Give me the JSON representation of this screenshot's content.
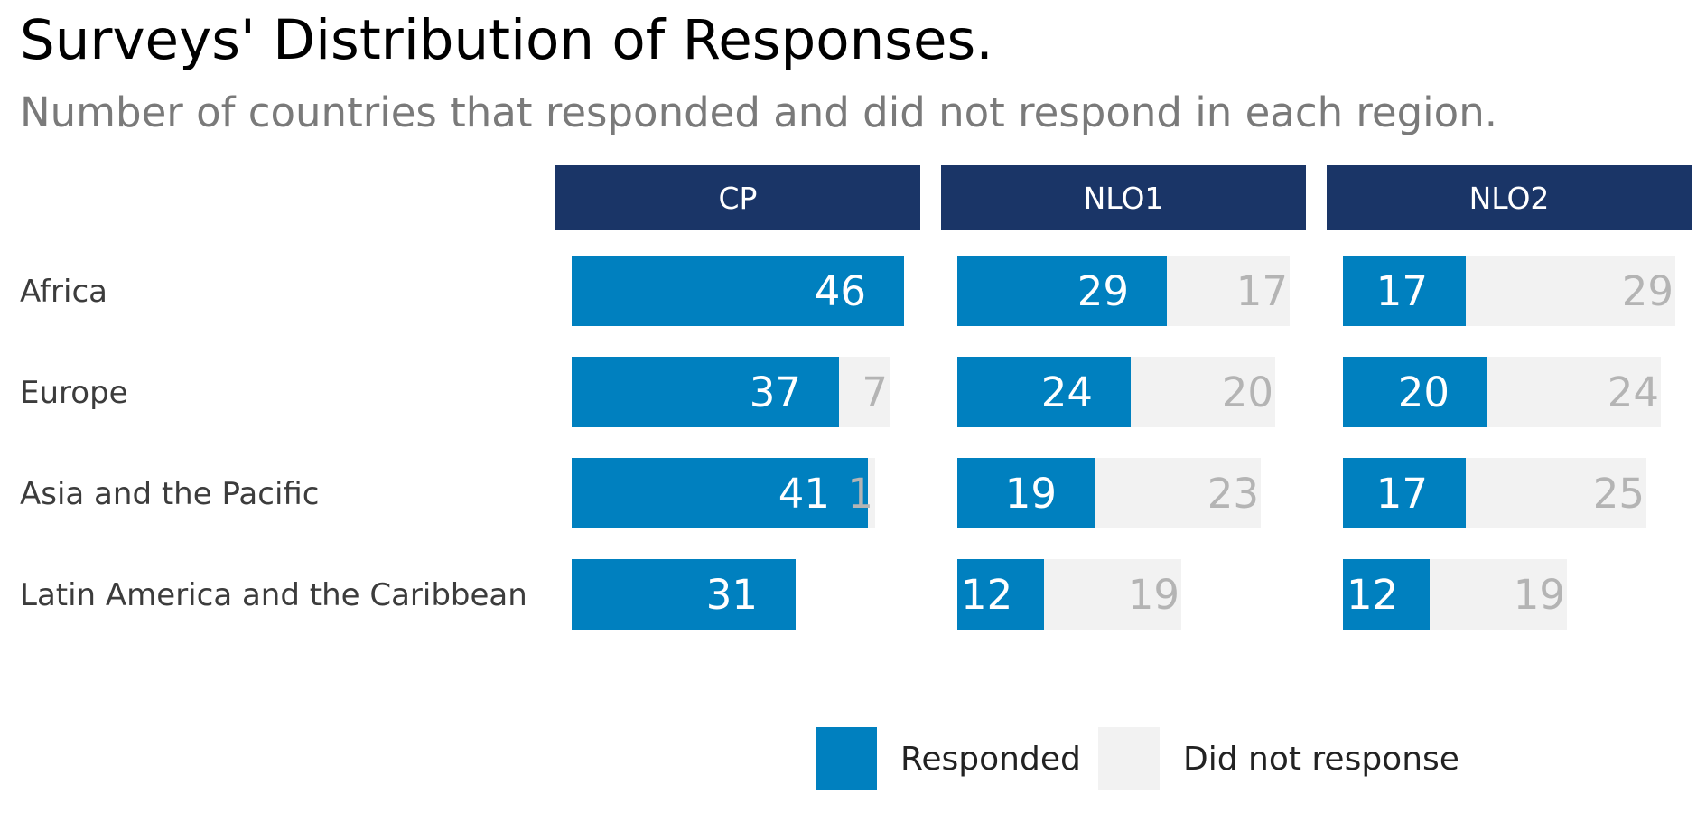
{
  "chart_data": {
    "type": "bar",
    "stacked": true,
    "orientation": "horizontal",
    "title": "Surveys' Distribution of Responses.",
    "subtitle": "Number of countries that responded and did not respond in each region.",
    "panels": [
      "CP",
      "NLO1",
      "NLO2"
    ],
    "categories": [
      "Africa",
      "Europe",
      "Asia and the Pacific",
      "Latin America and the Caribbean"
    ],
    "series": [
      {
        "name": "Responded",
        "values": {
          "CP": [
            46,
            37,
            41,
            31
          ],
          "NLO1": [
            29,
            24,
            19,
            12
          ],
          "NLO2": [
            17,
            20,
            17,
            12
          ]
        }
      },
      {
        "name": "Did not response",
        "values": {
          "CP": [
            0,
            7,
            1,
            0
          ],
          "NLO1": [
            17,
            20,
            23,
            19
          ],
          "NLO2": [
            29,
            24,
            25,
            19
          ]
        }
      }
    ],
    "xlim": [
      0,
      46
    ],
    "legend_position": "bottom",
    "grid": false
  },
  "colors": {
    "responded": "#0080bf",
    "not_responded": "#f2f2f2",
    "panel_header": "#1a3567",
    "header_text": "#ffffff",
    "responded_label": "#ffffff",
    "not_responded_label": "#b4b4b4",
    "category_label": "#3c3c3c"
  }
}
